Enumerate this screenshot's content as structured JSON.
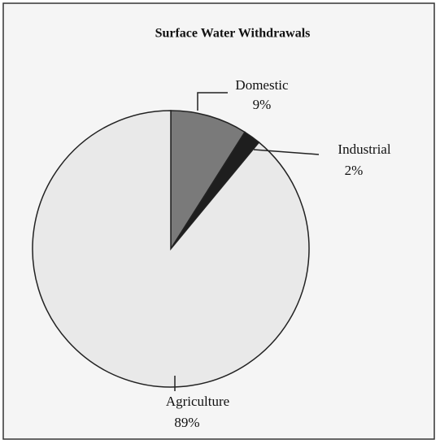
{
  "chart_data": {
    "type": "pie",
    "title": "Surface Water Withdrawals",
    "categories": [
      "Domestic",
      "Industrial",
      "Agriculture"
    ],
    "values": [
      9,
      2,
      89
    ],
    "value_labels": [
      "9%",
      "2%",
      "89%"
    ],
    "colors": [
      "#7a7a7a",
      "#1e1e1e",
      "#e9e9e9"
    ]
  }
}
